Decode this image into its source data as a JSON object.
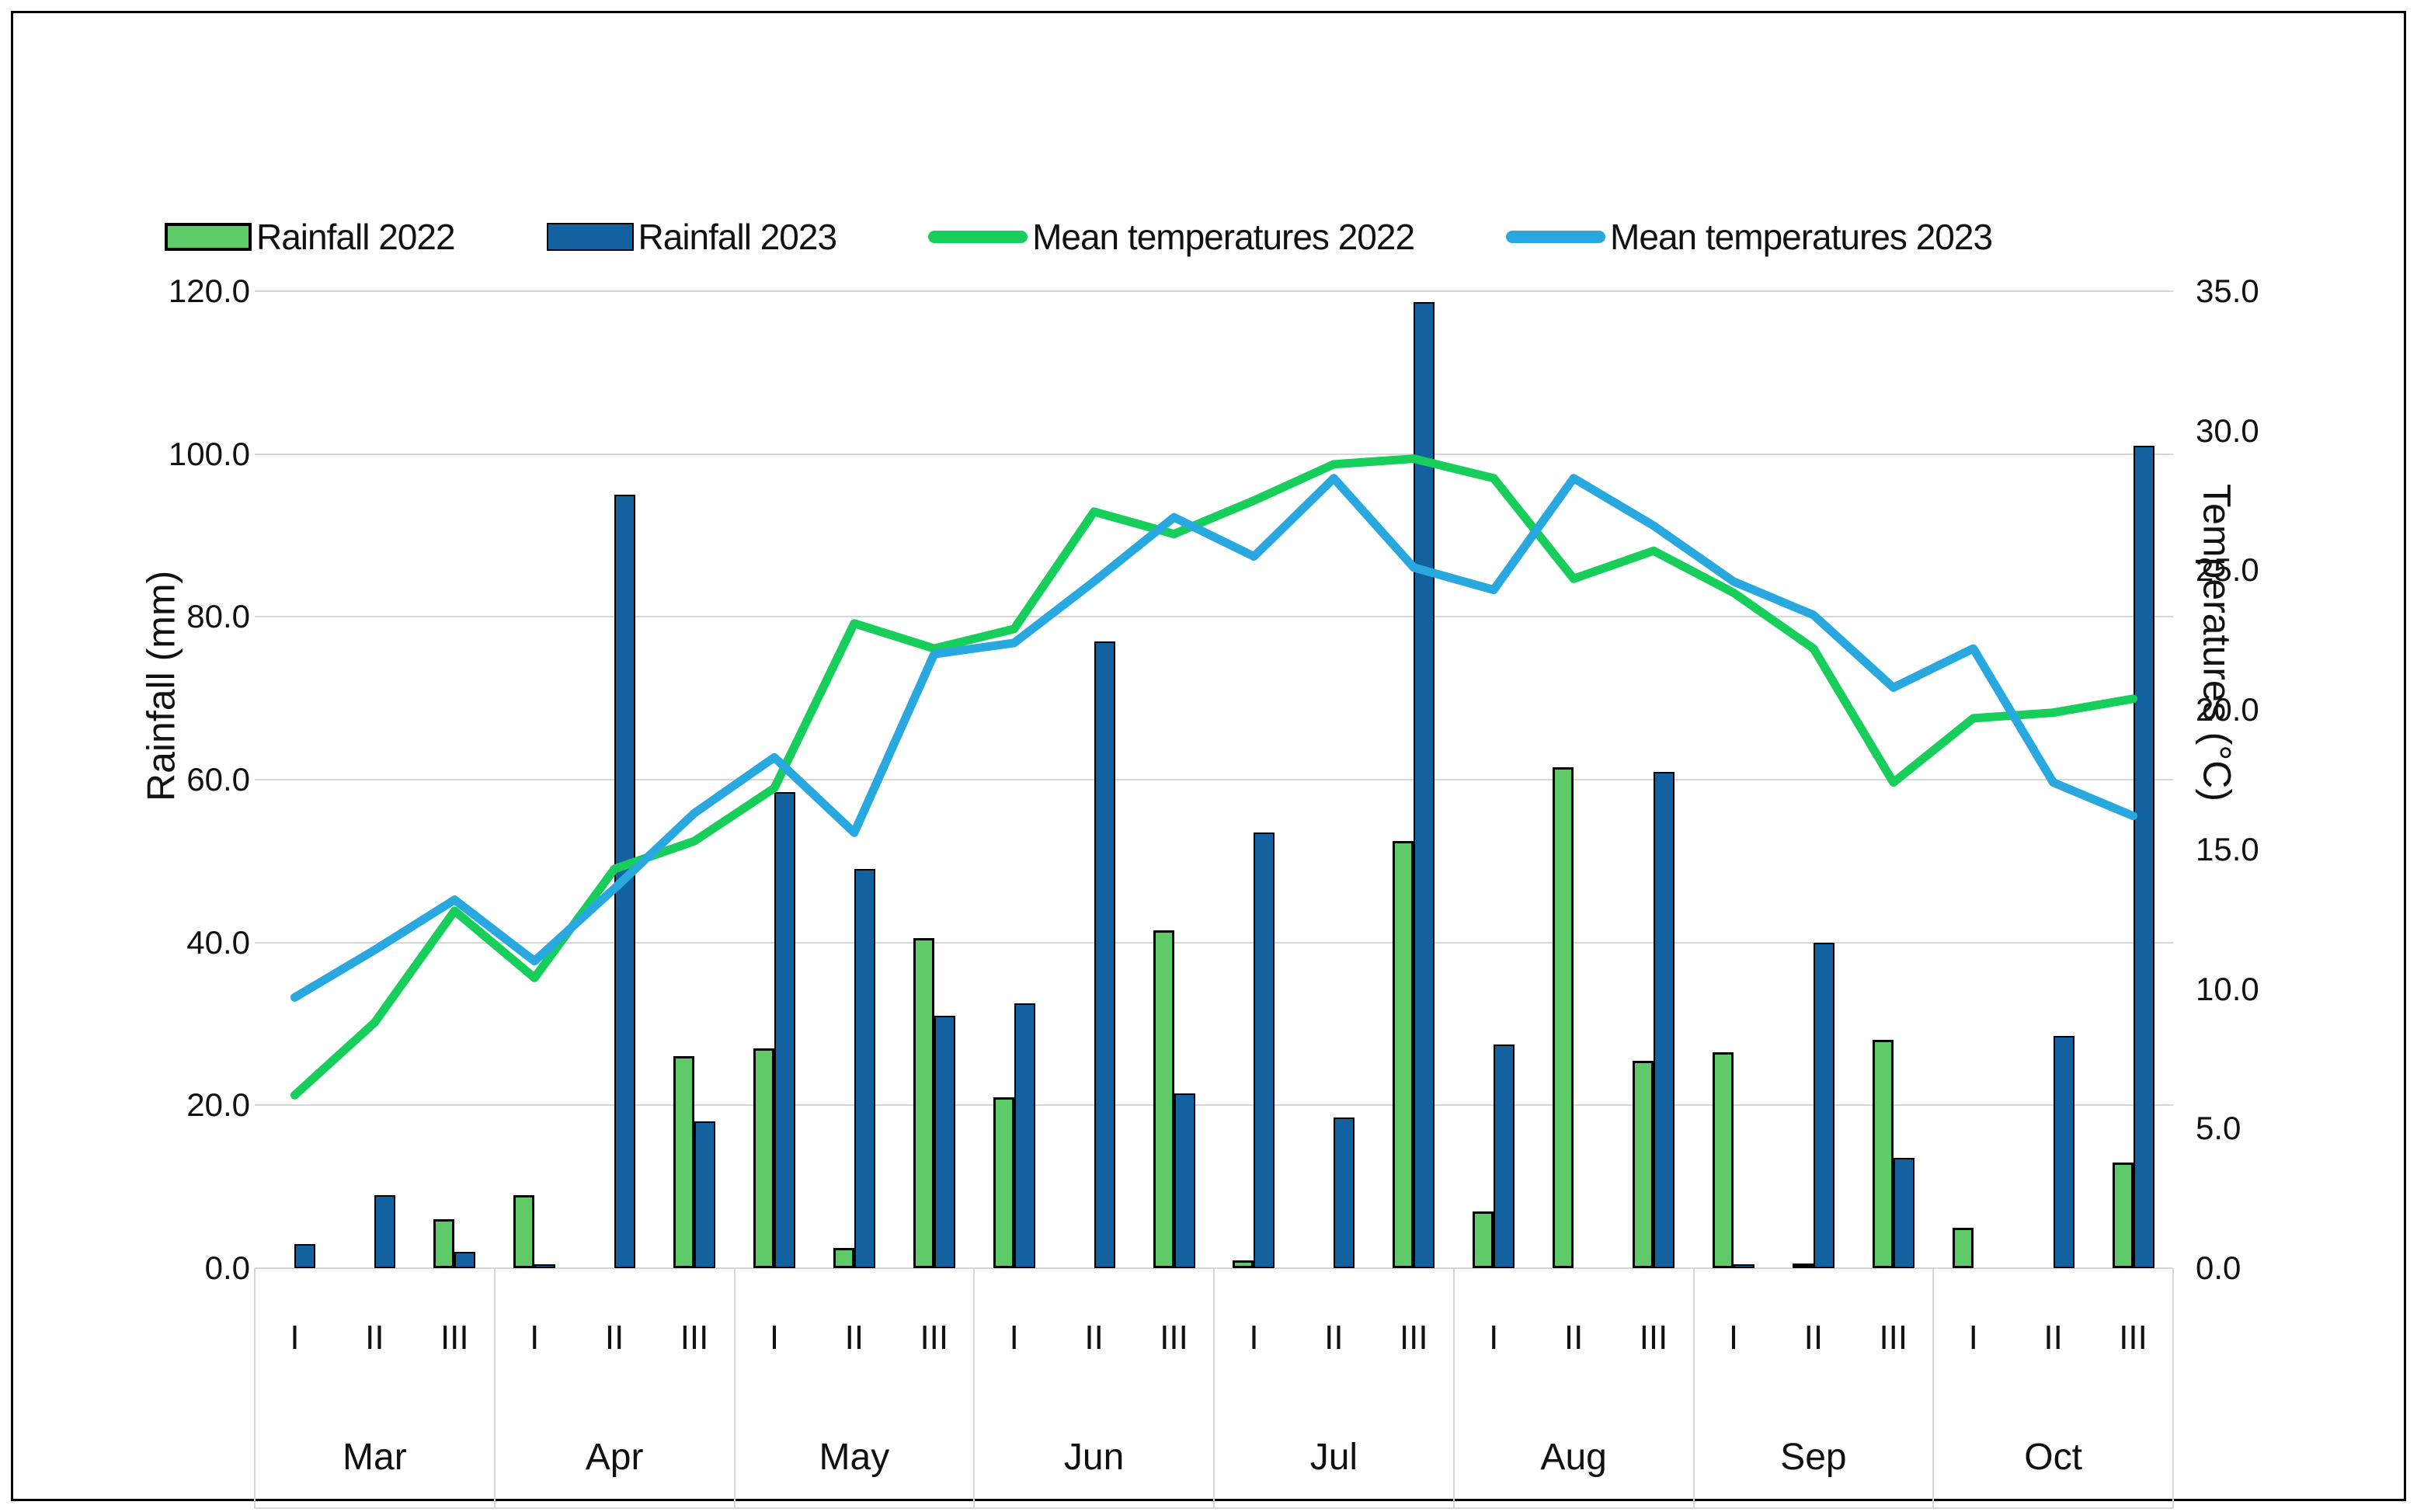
{
  "chart_data": {
    "type": "combo-bar-line",
    "months": [
      "Mar",
      "Apr",
      "May",
      "Jun",
      "Jul",
      "Aug",
      "Sep",
      "Oct"
    ],
    "decades": [
      "I",
      "II",
      "III"
    ],
    "categories": [
      "Mar I",
      "Mar II",
      "Mar III",
      "Apr I",
      "Apr II",
      "Apr III",
      "May I",
      "May II",
      "May III",
      "Jun I",
      "Jun II",
      "Jun III",
      "Jul I",
      "Jul II",
      "Jul III",
      "Aug I",
      "Aug II",
      "Aug III",
      "Sep I",
      "Sep II",
      "Sep III",
      "Oct I",
      "Oct II",
      "Oct III"
    ],
    "series": [
      {
        "name": "Rainfall 2022",
        "type": "bar",
        "axis": "left",
        "color": "#5fcb68",
        "border_color": "#000000",
        "values": [
          0,
          0,
          6,
          9,
          0,
          26,
          27,
          2.5,
          40.5,
          21,
          0,
          41.5,
          1,
          0,
          52.5,
          7,
          61.5,
          25.5,
          26.5,
          0.5,
          28,
          5,
          0,
          13
        ]
      },
      {
        "name": "Rainfall 2023",
        "type": "bar",
        "axis": "left",
        "color": "#14619f",
        "border_color": "#000000",
        "values": [
          3,
          9,
          2,
          0.5,
          95,
          18,
          58.5,
          49,
          31,
          32.5,
          77,
          21.5,
          53.5,
          18.5,
          118.7,
          27.5,
          0,
          61,
          0.5,
          40,
          13.5,
          0,
          28.5,
          101
        ]
      },
      {
        "name": "Mean temperatures 2022",
        "type": "line",
        "axis": "right",
        "color": "#18ce5a",
        "values": [
          6.2,
          8.8,
          12.8,
          10.4,
          14.3,
          15.3,
          17.2,
          23.1,
          22.2,
          22.9,
          27.1,
          26.3,
          27.5,
          28.8,
          29.0,
          28.3,
          24.7,
          25.7,
          24.2,
          22.2,
          17.4,
          19.7,
          19.9,
          20.4
        ]
      },
      {
        "name": "Mean temperatures 2023",
        "type": "line",
        "axis": "right",
        "color": "#29a8e0",
        "values": [
          9.7,
          11.4,
          13.2,
          11.0,
          13.6,
          16.3,
          18.3,
          15.6,
          22.0,
          22.4,
          24.6,
          26.9,
          25.5,
          28.3,
          25.1,
          24.3,
          28.3,
          26.6,
          24.6,
          23.4,
          20.8,
          22.2,
          17.4,
          16.2
        ]
      }
    ],
    "left_axis": {
      "label": "Rainfall (mm)",
      "min": 0,
      "max": 120,
      "step": 20,
      "tick_labels": [
        "0.0",
        "20.0",
        "40.0",
        "60.0",
        "80.0",
        "100.0",
        "120.0"
      ]
    },
    "right_axis": {
      "label": "Temperatures (°C)",
      "min": 0,
      "max": 35,
      "step": 5,
      "tick_labels": [
        "0.0",
        "5.0",
        "10.0",
        "15.0",
        "20.0",
        "25.0",
        "30.0",
        "35.0"
      ]
    },
    "grid": true,
    "legend_position": "top",
    "gridline_color": "#d6d6d6",
    "background_color": "#ffffff"
  }
}
